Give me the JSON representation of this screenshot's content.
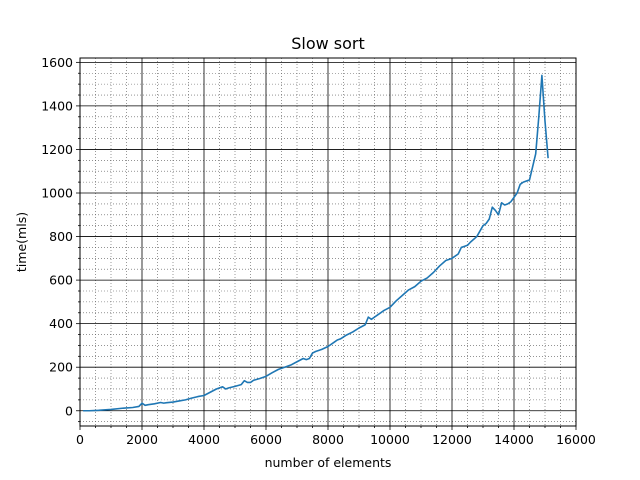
{
  "chart_data": {
    "type": "line",
    "title": "Slow sort",
    "xlabel": "number of elements",
    "ylabel": "time(mls)",
    "xlim": [
      0,
      16000
    ],
    "ylim": [
      -70,
      1620
    ],
    "xticks": [
      0,
      2000,
      4000,
      6000,
      8000,
      10000,
      12000,
      14000,
      16000
    ],
    "yticks": [
      0,
      200,
      400,
      600,
      800,
      1000,
      1200,
      1400,
      1600
    ],
    "xminor_step": 500,
    "yminor_step": 50,
    "grid": {
      "major": true,
      "minor": true
    },
    "series": [
      {
        "color": "#1f77b4",
        "x": [
          100,
          300,
          600,
          1000,
          1400,
          1700,
          1900,
          2000,
          2100,
          2200,
          2400,
          2600,
          2700,
          2800,
          3000,
          3200,
          3400,
          3600,
          3800,
          4000,
          4200,
          4400,
          4600,
          4700,
          4800,
          5000,
          5200,
          5300,
          5400,
          5500,
          5600,
          5800,
          6000,
          6200,
          6400,
          6600,
          6800,
          7000,
          7200,
          7300,
          7400,
          7500,
          7600,
          7800,
          8000,
          8200,
          8300,
          8400,
          8600,
          8800,
          9000,
          9200,
          9300,
          9400,
          9500,
          9600,
          9800,
          10000,
          10200,
          10400,
          10600,
          10800,
          11000,
          11200,
          11400,
          11600,
          11800,
          12000,
          12200,
          12300,
          12400,
          12500,
          12600,
          12800,
          13000,
          13100,
          13200,
          13300,
          13400,
          13500,
          13600,
          13700,
          13800,
          13900,
          14000,
          14100,
          14200,
          14300,
          14500,
          14700,
          14800,
          14900,
          15000,
          15100
        ],
        "y": [
          0,
          0,
          2,
          6,
          12,
          15,
          20,
          35,
          25,
          28,
          32,
          38,
          35,
          37,
          40,
          45,
          50,
          58,
          65,
          70,
          85,
          100,
          110,
          100,
          105,
          112,
          120,
          138,
          130,
          130,
          140,
          148,
          158,
          175,
          190,
          200,
          210,
          225,
          240,
          235,
          240,
          265,
          272,
          282,
          295,
          315,
          325,
          330,
          348,
          362,
          380,
          395,
          430,
          420,
          430,
          440,
          460,
          475,
          505,
          530,
          555,
          570,
          595,
          610,
          635,
          665,
          690,
          700,
          720,
          750,
          755,
          760,
          775,
          800,
          850,
          860,
          880,
          935,
          920,
          900,
          955,
          945,
          950,
          960,
          980,
          1000,
          1040,
          1050,
          1060,
          1180,
          1350,
          1540,
          1330,
          1160
        ]
      }
    ]
  }
}
